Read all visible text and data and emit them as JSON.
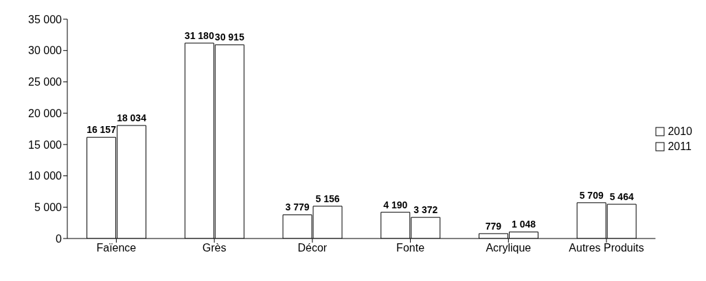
{
  "chart_data": {
    "type": "bar",
    "categories": [
      "Faïence",
      "Grès",
      "Décor",
      "Fonte",
      "Acrylique",
      "Autres Produits"
    ],
    "series": [
      {
        "name": "2010",
        "color": "#ffffff",
        "values": [
          16157,
          31180,
          3779,
          4190,
          779,
          5709
        ],
        "value_labels": [
          "16 157",
          "31 180",
          "3 779",
          "4 190",
          "779",
          "5 709"
        ]
      },
      {
        "name": "2011",
        "color": "#ffffff",
        "values": [
          18034,
          30915,
          5156,
          3372,
          1048,
          5464
        ],
        "value_labels": [
          "18 034",
          "30 915",
          "5 156",
          "3 372",
          "1 048",
          "5 464"
        ]
      }
    ],
    "ylim": [
      0,
      35000
    ],
    "yticks": [
      0,
      {
        "value": 5000,
        "label": "5 000"
      },
      {
        "value": 10000,
        "label": "10 000"
      },
      {
        "value": 15000,
        "label": "15 000"
      },
      {
        "value": 20000,
        "label": "20 000"
      },
      {
        "value": 25000,
        "label": "25 000"
      },
      {
        "value": 30000,
        "label": "30 000"
      },
      {
        "value": 35000,
        "label": "35 000"
      }
    ],
    "grid": false,
    "legend": "right"
  }
}
